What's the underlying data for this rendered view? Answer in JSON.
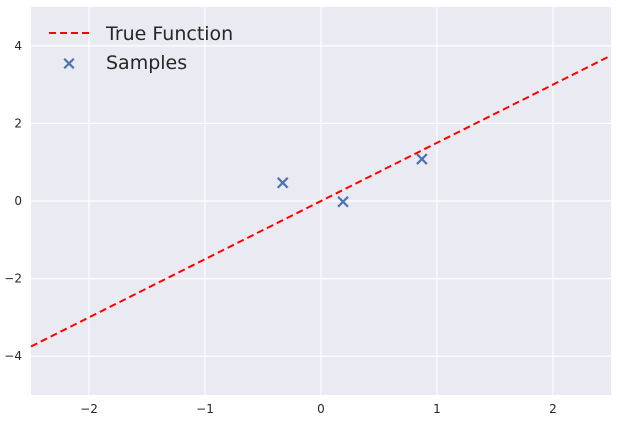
{
  "chart_data": {
    "type": "scatter",
    "title": "",
    "xlabel": "",
    "ylabel": "",
    "xlim": [
      -2.5,
      2.5
    ],
    "ylim": [
      -5,
      5
    ],
    "xticks": [
      -2,
      -1,
      0,
      1,
      2
    ],
    "yticks": [
      -4,
      -2,
      0,
      2,
      4
    ],
    "xtick_labels": [
      "−2",
      "−1",
      "0",
      "1",
      "2"
    ],
    "ytick_labels": [
      "−4",
      "−2",
      "0",
      "2",
      "4"
    ],
    "grid": true,
    "legend_position": "top-left",
    "series": [
      {
        "name": "True Function",
        "kind": "line",
        "style": "dashed",
        "color": "#ff0000",
        "x": [
          -2.5,
          2.5
        ],
        "y": [
          -3.75,
          3.75
        ]
      },
      {
        "name": "Samples",
        "kind": "scatter",
        "marker": "x",
        "color": "#4c72b0",
        "x": [
          -0.33,
          0.19,
          0.87
        ],
        "y": [
          0.47,
          -0.02,
          1.08
        ]
      }
    ]
  }
}
